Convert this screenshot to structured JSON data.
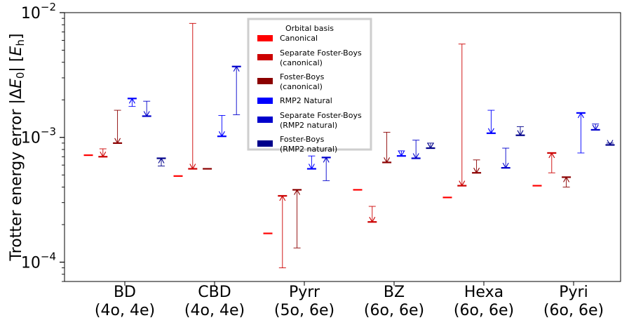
{
  "chart_data": {
    "type": "errorbar-range-log",
    "title": "",
    "ylabel": "Trotter energy error |ΔE₀| [Eₕ]",
    "ylabel_parts": {
      "prefix": "Trotter energy error |Δ",
      "e": "E",
      "e_sub": "0",
      "mid": "| [",
      "eh": "E",
      "eh_sub": "h",
      "suffix": "]"
    },
    "yscale": "log",
    "ylim": [
      7e-05,
      0.01
    ],
    "yticks": [
      {
        "value": 0.0001,
        "base": "10",
        "exp": "−4"
      },
      {
        "value": 0.001,
        "base": "10",
        "exp": "−3"
      },
      {
        "value": 0.01,
        "base": "10",
        "exp": "−2"
      }
    ],
    "categories": [
      {
        "name": "BD",
        "basis": "(4o, 4e)"
      },
      {
        "name": "CBD",
        "basis": "(4o, 4e)"
      },
      {
        "name": "Pyrr",
        "basis": "(5o, 6e)"
      },
      {
        "name": "BZ",
        "basis": "(6o, 6e)"
      },
      {
        "name": "Hexa",
        "basis": "(6o, 6e)"
      },
      {
        "name": "Pyri",
        "basis": "(6o, 6e)"
      }
    ],
    "legend": {
      "title": "Orbital basis",
      "position": "upper-center",
      "entries": [
        {
          "label": "Canonical",
          "color": "#ff0000"
        },
        {
          "label": "Separate Foster-Boys\n(canonical)",
          "color": "#cc0000"
        },
        {
          "label": "Foster-Boys\n(canonical)",
          "color": "#8b0000"
        },
        {
          "label": "RMP2 Natural",
          "color": "#0000ff"
        },
        {
          "label": "Separate Foster-Boys\n(RMP2 natural)",
          "color": "#0000cc"
        },
        {
          "label": "Foster-Boys\n(RMP2 natural)",
          "color": "#00008b"
        }
      ]
    },
    "series": [
      {
        "name": "Canonical",
        "color": "#ff0000",
        "values": [
          {
            "value": 0.00072
          },
          {
            "value": 0.00049
          },
          {
            "value": 0.00017
          },
          {
            "value": 0.00038
          },
          {
            "value": 0.00033
          },
          {
            "value": 0.00041
          }
        ]
      },
      {
        "name": "Separate Foster-Boys (canonical)",
        "color": "#cc0000",
        "values": [
          {
            "value": 0.0007,
            "low": 0.0007,
            "high": 0.00081
          },
          {
            "value": 0.00056,
            "low": 0.00056,
            "high": 0.0082
          },
          {
            "value": 0.00034,
            "low": 9e-05,
            "high": 0.00034
          },
          {
            "value": 0.00021,
            "low": 0.00021,
            "high": 0.00028
          },
          {
            "value": 0.00041,
            "low": 0.00041,
            "high": 0.0056
          },
          {
            "value": 0.00075,
            "low": 0.00052,
            "high": 0.00075
          }
        ]
      },
      {
        "name": "Foster-Boys (canonical)",
        "color": "#8b0000",
        "values": [
          {
            "value": 0.0009,
            "low": 0.0009,
            "high": 0.00165
          },
          {
            "value": 0.00056,
            "low": 0.00056,
            "high": 0.00056
          },
          {
            "value": 0.00038,
            "low": 0.00013,
            "high": 0.00038
          },
          {
            "value": 0.00063,
            "low": 0.00063,
            "high": 0.0011
          },
          {
            "value": 0.00052,
            "low": 0.00052,
            "high": 0.00066
          },
          {
            "value": 0.00048,
            "low": 0.0004,
            "high": 0.00048
          }
        ]
      },
      {
        "name": "RMP2 Natural",
        "color": "#0000ff",
        "values": [
          {
            "value": 0.00205,
            "low": 0.00177,
            "high": 0.00205
          },
          {
            "value": 0.00102,
            "low": 0.00102,
            "high": 0.0015
          },
          {
            "value": 0.00056,
            "low": 0.00056,
            "high": 0.00071
          },
          {
            "value": 0.00071,
            "low": 0.00071,
            "high": 0.00078
          },
          {
            "value": 0.00108,
            "low": 0.00108,
            "high": 0.00165
          },
          {
            "value": 0.00157,
            "low": 0.00075,
            "high": 0.00157
          }
        ]
      },
      {
        "name": "Separate Foster-Boys (RMP2 natural)",
        "color": "#0000cc",
        "values": [
          {
            "value": 0.00148,
            "low": 0.00148,
            "high": 0.00195
          },
          {
            "value": 0.0037,
            "low": 0.00152,
            "high": 0.0037
          },
          {
            "value": 0.00069,
            "low": 0.00045,
            "high": 0.00069
          },
          {
            "value": 0.00068,
            "low": 0.00068,
            "high": 0.00095
          },
          {
            "value": 0.00057,
            "low": 0.00057,
            "high": 0.00082
          },
          {
            "value": 0.00115,
            "low": 0.00115,
            "high": 0.00128
          }
        ]
      },
      {
        "name": "Foster-Boys (RMP2 natural)",
        "color": "#00008b",
        "values": [
          {
            "value": 0.00068,
            "low": 0.00059,
            "high": 0.00068
          },
          null,
          null,
          {
            "value": 0.00082,
            "low": 0.00082,
            "high": 0.0009
          },
          {
            "value": 0.00104,
            "low": 0.00104,
            "high": 0.00122
          },
          {
            "value": 0.00087,
            "low": 0.00087,
            "high": 0.0009
          }
        ]
      }
    ]
  }
}
